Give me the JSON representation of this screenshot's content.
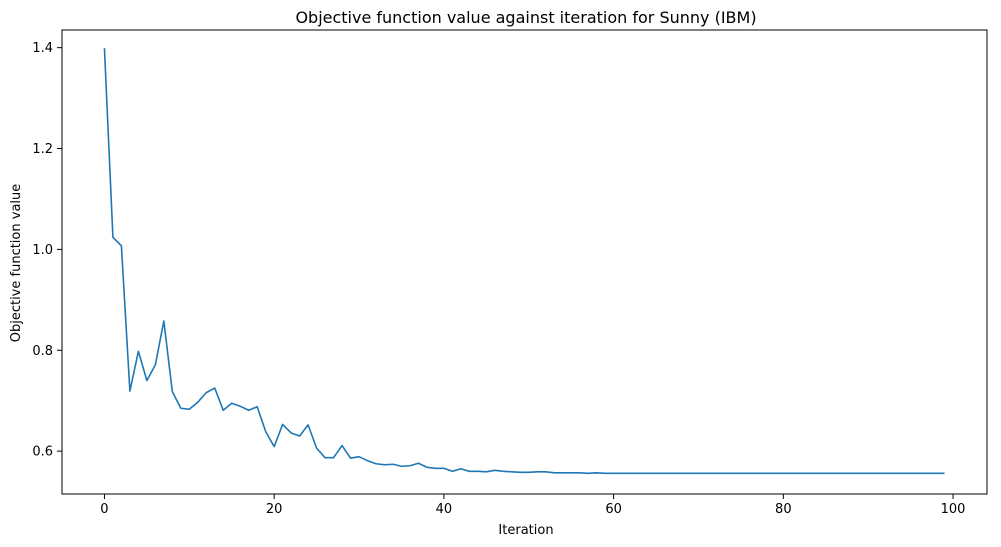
{
  "chart_data": {
    "type": "line",
    "title": "Objective function value against iteration for Sunny (IBM)",
    "xlabel": "Iteration",
    "ylabel": "Objective function value",
    "xlim": [
      -5,
      104
    ],
    "ylim": [
      0.515,
      1.435
    ],
    "xticks": [
      0,
      20,
      40,
      60,
      80,
      100
    ],
    "xtick_labels": [
      "0",
      "20",
      "40",
      "60",
      "80",
      "100"
    ],
    "yticks": [
      0.6,
      0.8,
      1.0,
      1.2,
      1.4
    ],
    "ytick_labels": [
      "0.6",
      "0.8",
      "1.0",
      "1.2",
      "1.4"
    ],
    "grid": false,
    "series": [
      {
        "color": "#1f77b4",
        "x": [
          0,
          1,
          2,
          3,
          4,
          5,
          6,
          7,
          8,
          9,
          10,
          11,
          12,
          13,
          14,
          15,
          16,
          17,
          18,
          19,
          20,
          21,
          22,
          23,
          24,
          25,
          26,
          27,
          28,
          29,
          30,
          31,
          32,
          33,
          34,
          35,
          36,
          37,
          38,
          39,
          40,
          41,
          42,
          43,
          44,
          45,
          46,
          47,
          48,
          49,
          50,
          51,
          52,
          53,
          54,
          55,
          56,
          57,
          58,
          59,
          60,
          61,
          62,
          63,
          64,
          65,
          66,
          67,
          68,
          69,
          70,
          71,
          72,
          73,
          74,
          75,
          76,
          77,
          78,
          79,
          80,
          81,
          82,
          83,
          84,
          85,
          86,
          87,
          88,
          89,
          90,
          91,
          92,
          93,
          94,
          95,
          96,
          97,
          98,
          99
        ],
        "values": [
          1.399,
          1.024,
          1.007,
          0.719,
          0.798,
          0.74,
          0.771,
          0.858,
          0.718,
          0.685,
          0.683,
          0.697,
          0.716,
          0.725,
          0.681,
          0.695,
          0.689,
          0.681,
          0.688,
          0.639,
          0.609,
          0.653,
          0.636,
          0.63,
          0.652,
          0.606,
          0.587,
          0.587,
          0.611,
          0.586,
          0.589,
          0.581,
          0.575,
          0.573,
          0.574,
          0.57,
          0.571,
          0.576,
          0.568,
          0.566,
          0.566,
          0.56,
          0.565,
          0.56,
          0.56,
          0.559,
          0.562,
          0.56,
          0.559,
          0.558,
          0.558,
          0.559,
          0.559,
          0.557,
          0.557,
          0.557,
          0.557,
          0.556,
          0.557,
          0.556,
          0.556,
          0.556,
          0.556,
          0.556,
          0.556,
          0.556,
          0.556,
          0.556,
          0.556,
          0.556,
          0.556,
          0.556,
          0.556,
          0.556,
          0.556,
          0.556,
          0.556,
          0.556,
          0.556,
          0.556,
          0.556,
          0.556,
          0.556,
          0.556,
          0.556,
          0.556,
          0.556,
          0.556,
          0.556,
          0.556,
          0.556,
          0.556,
          0.556,
          0.556,
          0.556,
          0.556,
          0.556,
          0.556,
          0.556,
          0.556
        ]
      }
    ]
  }
}
